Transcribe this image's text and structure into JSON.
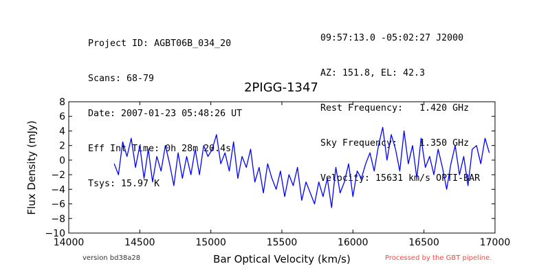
{
  "header_left": [
    "Project ID: AGBT06B_034_20",
    "Scans: 68-79",
    "Date: 2007-01-23 05:48:26 UT",
    "Eff Int Time: 0h 28m 20.4s",
    "Tsys: 15.97 K"
  ],
  "header_right": [
    "09:57:13.0 -05:02:27 J2000",
    "AZ: 151.8, EL: 42.3",
    "Rest Frequency:   1.420 GHz",
    "Sky Frequency:    1.350 GHz",
    "Velocity: 15631 km/s OPTI-BAR"
  ],
  "footer": {
    "version": "version bd38a28",
    "processed": "Processed by the GBT pipeline."
  },
  "colors": {
    "line": "#0000ff",
    "processed": "#ff4444"
  },
  "chart_data": {
    "type": "line",
    "title": "2PIGG-1347",
    "xlabel": "Bar Optical Velocity (km/s)",
    "ylabel": "Flux Density (mJy)",
    "xlim": [
      14000,
      17000
    ],
    "ylim": [
      -10,
      8
    ],
    "xticks": [
      14000,
      14500,
      15000,
      15500,
      16000,
      16500,
      17000
    ],
    "yticks": [
      -10,
      -8,
      -6,
      -4,
      -2,
      0,
      2,
      4,
      6,
      8
    ],
    "grid": false,
    "series": [
      {
        "x": [
          14320,
          14350,
          14380,
          14410,
          14440,
          14470,
          14500,
          14530,
          14560,
          14590,
          14620,
          14650,
          14680,
          14710,
          14740,
          14770,
          14800,
          14830,
          14860,
          14890,
          14920,
          14950,
          14980,
          15010,
          15040,
          15070,
          15100,
          15130,
          15160,
          15190,
          15220,
          15250,
          15280,
          15310,
          15340,
          15370,
          15400,
          15430,
          15460,
          15490,
          15520,
          15550,
          15580,
          15610,
          15640,
          15670,
          15700,
          15730,
          15760,
          15790,
          15820,
          15850,
          15880,
          15910,
          15940,
          15970,
          16000,
          16030,
          16060,
          16090,
          16120,
          16150,
          16180,
          16210,
          16240,
          16270,
          16300,
          16330,
          16360,
          16390,
          16420,
          16450,
          16480,
          16510,
          16540,
          16570,
          16600,
          16630,
          16660,
          16690,
          16720,
          16750,
          16780,
          16810,
          16840,
          16870,
          16900,
          16930,
          16960
        ],
        "y": [
          -0.5,
          -2.0,
          2.5,
          0.5,
          3.0,
          -1.0,
          2.0,
          -2.5,
          1.5,
          -3.0,
          0.5,
          -1.5,
          2.0,
          -0.5,
          -3.5,
          1.0,
          -2.5,
          0.5,
          -2.0,
          1.5,
          -2.0,
          2.0,
          0.5,
          1.5,
          3.5,
          -0.5,
          1.0,
          -1.5,
          2.5,
          -2.5,
          0.5,
          -1.0,
          1.5,
          -3.0,
          -1.0,
          -4.5,
          -0.5,
          -2.5,
          -4.0,
          -1.5,
          -5.0,
          -2.0,
          -3.5,
          -1.0,
          -5.5,
          -3.0,
          -4.5,
          -6.0,
          -3.0,
          -5.0,
          -2.5,
          -6.5,
          -1.0,
          -4.5,
          -3.0,
          -0.5,
          -5.0,
          -1.5,
          -2.5,
          -0.5,
          1.0,
          -1.5,
          2.0,
          4.5,
          0.0,
          3.5,
          1.5,
          -1.5,
          4.0,
          -0.5,
          2.0,
          -2.5,
          3.0,
          -1.0,
          0.5,
          -2.0,
          1.5,
          -1.0,
          -4.0,
          -0.5,
          2.0,
          -2.0,
          0.5,
          -3.5,
          1.5,
          2.0,
          -0.5,
          3.0,
          1.0
        ]
      }
    ]
  }
}
